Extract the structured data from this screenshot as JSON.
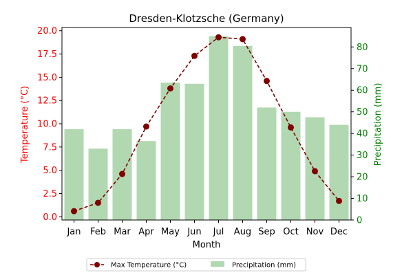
{
  "chart_data": {
    "type": "bar+line",
    "title": "Dresden-Klotzsche (Germany)",
    "xlabel": "Month",
    "ylabel_left": "Temperature (°C)",
    "ylabel_right": "Precipitation (mm)",
    "categories": [
      "Jan",
      "Feb",
      "Mar",
      "Apr",
      "May",
      "Jun",
      "Jul",
      "Aug",
      "Sep",
      "Oct",
      "Nov",
      "Dec"
    ],
    "left_axis": {
      "ylim": [
        -0.35,
        20.35
      ],
      "ticks": [
        0.0,
        2.5,
        5.0,
        7.5,
        10.0,
        12.5,
        15.0,
        17.5,
        20.0
      ],
      "tick_labels": [
        "0.0",
        "2.5",
        "5.0",
        "7.5",
        "10.0",
        "12.5",
        "15.0",
        "17.5",
        "20.0"
      ],
      "color": "#ff0000"
    },
    "right_axis": {
      "ylim": [
        0,
        89
      ],
      "ticks": [
        0,
        10,
        20,
        30,
        40,
        50,
        60,
        70,
        80
      ],
      "tick_labels": [
        "0",
        "10",
        "20",
        "30",
        "40",
        "50",
        "60",
        "70",
        "80"
      ],
      "color": "#008000"
    },
    "series": [
      {
        "name": "Max Temperature (°C)",
        "type": "line",
        "axis": "left",
        "color": "#800000",
        "style": "dashed",
        "marker": "circle",
        "values": [
          0.6,
          1.5,
          4.6,
          9.7,
          13.8,
          17.3,
          19.3,
          19.1,
          14.6,
          9.6,
          4.9,
          1.7
        ]
      },
      {
        "name": "Precipitation (mm)",
        "type": "bar",
        "axis": "right",
        "color": "#b2d8b2",
        "values": [
          42,
          33,
          42,
          36.5,
          63.5,
          63,
          85,
          80.5,
          52,
          50,
          47.5,
          44
        ]
      }
    ],
    "legend": {
      "placement": "bottom-center"
    },
    "grid": false
  }
}
